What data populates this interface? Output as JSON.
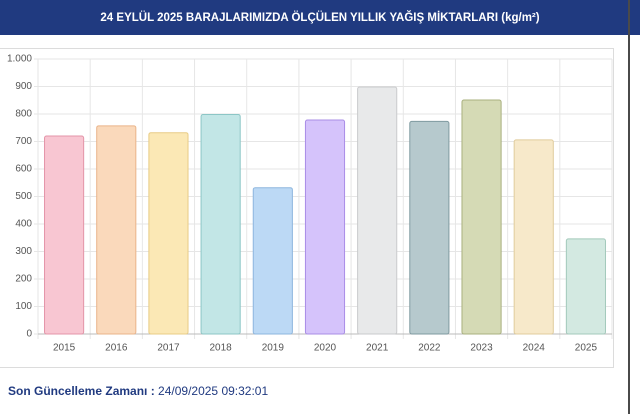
{
  "chart_data": {
    "type": "bar",
    "title": "24 EYLÜL 2025 BARAJLARIMIZDA ÖLÇÜLEN YILLIK YAĞIŞ MİKTARLARI (kg/m²)",
    "categories": [
      "2015",
      "2016",
      "2017",
      "2018",
      "2019",
      "2020",
      "2021",
      "2022",
      "2023",
      "2024",
      "2025"
    ],
    "values": [
      720,
      757,
      732,
      798,
      532,
      778,
      898,
      773,
      851,
      706,
      346
    ],
    "colors": [
      "#f8c6d2",
      "#fad9bb",
      "#fbe8b5",
      "#c2e6e6",
      "#bcd9f5",
      "#d5c3fb",
      "#e8e9ea",
      "#b6c9cd",
      "#d5dab5",
      "#f7e9ca",
      "#d3e9e1"
    ],
    "border_colors": [
      "#e394a8",
      "#eab48a",
      "#e8cc85",
      "#8cc6c6",
      "#8db6de",
      "#a98de6",
      "#c9cacc",
      "#7f9aa0",
      "#a9b07e",
      "#e0cc9c",
      "#a3c9bb"
    ],
    "ylim": [
      0,
      1000
    ],
    "yticks": [
      0,
      100,
      200,
      300,
      400,
      500,
      600,
      700,
      800,
      900,
      {
        "value": 1000,
        "label": "1.000"
      }
    ],
    "grid": true
  },
  "footer": {
    "label": "Son Güncelleme Zamanı :",
    "value": "24/09/2025 09:32:01"
  }
}
